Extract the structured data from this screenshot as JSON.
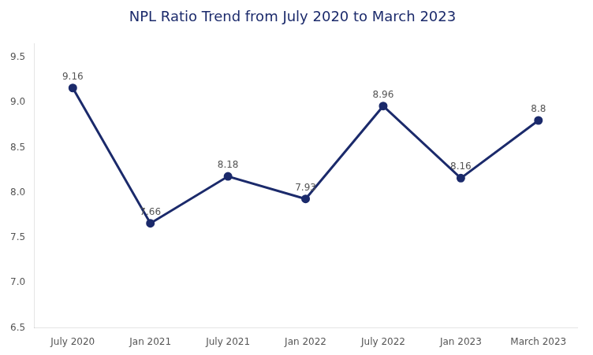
{
  "chart_data": {
    "type": "line",
    "title": "NPL Ratio Trend from July 2020 to March 2023",
    "categories": [
      "July 2020",
      "Jan 2021",
      "July 2021",
      "Jan 2022",
      "July 2022",
      "Jan 2023",
      "March 2023"
    ],
    "values": [
      9.16,
      7.66,
      8.18,
      7.93,
      8.96,
      8.16,
      8.8
    ],
    "color": "#1b2a6b",
    "marker": "circle",
    "ylim": [
      6.5,
      9.65
    ],
    "yticks": [
      6.5,
      {
        "value": 7.0,
        "label": "7.0"
      },
      7.5,
      {
        "value": 8.0,
        "label": "8.0"
      },
      8.5,
      {
        "value": 9.0,
        "label": "9.0"
      },
      9.5
    ],
    "grid": false,
    "data_labels": true
  }
}
